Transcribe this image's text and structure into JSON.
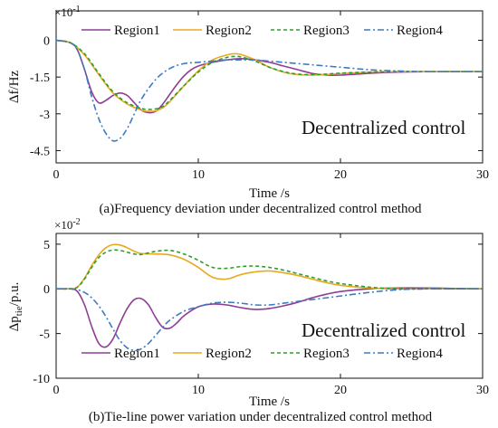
{
  "chart_data": [
    {
      "type": "line",
      "panel": "a",
      "caption": "(a)Frequency deviation under decentralized control method",
      "xlabel": "Time /s",
      "ylabel": "Δf/Hz",
      "y_multiplier": "×10",
      "y_multiplier_exp": "-1",
      "annotation": "Decentralized control",
      "xlim": [
        0,
        30
      ],
      "ylim": [
        -5,
        1.2
      ],
      "xticks": [
        "0",
        "10",
        "20",
        "30"
      ],
      "xtick_values": [
        0,
        10,
        20,
        30
      ],
      "yticks": [
        "0",
        "-1.5",
        "-3",
        "-4.5"
      ],
      "ytick_values": [
        0,
        -1.5,
        -3,
        -4.5
      ],
      "legend_position": "top",
      "series": [
        {
          "name": "Region1",
          "color": "#8e3d96",
          "dash": "solid",
          "x": [
            0,
            1,
            1.5,
            2,
            2.5,
            3,
            3.5,
            4,
            4.5,
            5,
            5.5,
            6,
            6.5,
            7,
            7.5,
            8,
            8.5,
            9,
            9.5,
            10,
            11,
            12,
            13,
            14,
            15,
            16,
            17,
            18,
            19,
            20,
            22,
            24,
            26,
            28,
            30
          ],
          "y": [
            0,
            -0.1,
            -0.4,
            -1.2,
            -2.1,
            -2.55,
            -2.45,
            -2.25,
            -2.15,
            -2.25,
            -2.55,
            -2.85,
            -2.95,
            -2.9,
            -2.6,
            -2.2,
            -1.8,
            -1.45,
            -1.2,
            -1.05,
            -0.9,
            -0.8,
            -0.75,
            -0.8,
            -0.9,
            -1.05,
            -1.2,
            -1.35,
            -1.42,
            -1.42,
            -1.35,
            -1.3,
            -1.28,
            -1.28,
            -1.28
          ]
        },
        {
          "name": "Region2",
          "color": "#e8a820",
          "dash": "solid",
          "x": [
            0,
            1,
            2,
            3,
            4,
            5,
            6,
            6.5,
            7,
            7.5,
            8,
            9,
            10,
            11,
            12,
            12.5,
            13,
            14,
            15,
            16,
            17,
            18,
            19,
            20,
            22,
            24,
            26,
            28,
            30
          ],
          "y": [
            0,
            -0.1,
            -0.6,
            -1.4,
            -2.15,
            -2.6,
            -2.85,
            -2.9,
            -2.88,
            -2.75,
            -2.5,
            -1.85,
            -1.25,
            -0.8,
            -0.6,
            -0.55,
            -0.58,
            -0.8,
            -1.1,
            -1.3,
            -1.4,
            -1.42,
            -1.4,
            -1.36,
            -1.3,
            -1.28,
            -1.28,
            -1.28,
            -1.28
          ]
        },
        {
          "name": "Region3",
          "color": "#2e9e2e",
          "dash": "4 3",
          "x": [
            0,
            1,
            2,
            3,
            4,
            5,
            6,
            6.5,
            7,
            7.5,
            8,
            9,
            10,
            11,
            12,
            12.5,
            13,
            14,
            15,
            16,
            17,
            18,
            19,
            20,
            22,
            24,
            26,
            28,
            30
          ],
          "y": [
            0,
            -0.1,
            -0.55,
            -1.35,
            -2.1,
            -2.55,
            -2.78,
            -2.82,
            -2.8,
            -2.7,
            -2.45,
            -1.85,
            -1.3,
            -0.9,
            -0.7,
            -0.66,
            -0.68,
            -0.85,
            -1.1,
            -1.28,
            -1.38,
            -1.4,
            -1.38,
            -1.34,
            -1.3,
            -1.28,
            -1.28,
            -1.28,
            -1.28
          ]
        },
        {
          "name": "Region4",
          "color": "#3b7bbf",
          "dash": "7 3 2 3",
          "x": [
            0,
            1,
            1.5,
            2,
            2.5,
            3,
            3.5,
            4,
            4.5,
            5,
            5.5,
            6,
            7,
            8,
            9,
            10,
            11,
            12,
            13,
            14,
            15,
            16,
            17,
            18,
            20,
            22,
            24,
            26,
            28,
            30
          ],
          "y": [
            0,
            -0.1,
            -0.4,
            -1.2,
            -2.3,
            -3.2,
            -3.8,
            -4.1,
            -4.0,
            -3.6,
            -3.0,
            -2.4,
            -1.6,
            -1.15,
            -0.95,
            -0.9,
            -0.85,
            -0.8,
            -0.8,
            -0.8,
            -0.85,
            -0.9,
            -0.95,
            -1.0,
            -1.1,
            -1.2,
            -1.25,
            -1.28,
            -1.28,
            -1.28
          ]
        }
      ]
    },
    {
      "type": "line",
      "panel": "b",
      "caption": "(b)Tie-line power variation under decentralized control method",
      "xlabel": "Time /s",
      "ylabel": "Δp",
      "ylabel_sub": "tie",
      "ylabel_suffix": "/p.u.",
      "y_multiplier": "×10",
      "y_multiplier_exp": "-2",
      "annotation": "Decentralized control",
      "xlim": [
        0,
        30
      ],
      "ylim": [
        -10,
        6.2
      ],
      "xticks": [
        "0",
        "10",
        "20",
        "30"
      ],
      "xtick_values": [
        0,
        10,
        20,
        30
      ],
      "yticks": [
        "5",
        "0",
        "-5",
        "-10"
      ],
      "ytick_values": [
        5,
        0,
        -5,
        -10
      ],
      "legend_position": "bottom",
      "series": [
        {
          "name": "Region1",
          "color": "#8e3d96",
          "dash": "solid",
          "x": [
            0,
            1,
            1.5,
            2,
            2.5,
            3,
            3.5,
            4,
            4.5,
            5,
            5.5,
            6,
            6.5,
            7,
            7.5,
            8,
            8.5,
            9,
            10,
            11,
            12,
            13,
            14,
            15,
            16,
            17,
            18,
            19,
            20,
            22,
            24,
            26,
            28,
            30
          ],
          "y": [
            0,
            0,
            -0.3,
            -1.8,
            -4.2,
            -6.1,
            -6.5,
            -5.6,
            -3.8,
            -2.2,
            -1.2,
            -1.1,
            -1.8,
            -3.2,
            -4.3,
            -4.4,
            -3.8,
            -3.0,
            -2.0,
            -1.7,
            -1.8,
            -2.1,
            -2.3,
            -2.2,
            -1.9,
            -1.5,
            -1.0,
            -0.6,
            -0.3,
            0,
            0.1,
            0.1,
            0.05,
            0
          ]
        },
        {
          "name": "Region2",
          "color": "#e8a820",
          "dash": "solid",
          "x": [
            0,
            1,
            1.5,
            2,
            2.5,
            3,
            3.5,
            4,
            4.5,
            5,
            5.5,
            6,
            7,
            8,
            9,
            10,
            11,
            12,
            13,
            14,
            15,
            16,
            17,
            18,
            19,
            20,
            22,
            24,
            26,
            28,
            30
          ],
          "y": [
            0,
            0,
            0.2,
            1.2,
            2.6,
            3.8,
            4.6,
            4.95,
            4.9,
            4.6,
            4.2,
            3.95,
            3.9,
            3.8,
            3.3,
            2.4,
            1.3,
            1.1,
            1.6,
            1.9,
            2.0,
            1.8,
            1.5,
            1.1,
            0.7,
            0.4,
            0.1,
            0,
            0,
            0,
            0
          ]
        },
        {
          "name": "Region3",
          "color": "#2e9e2e",
          "dash": "4 3",
          "x": [
            0,
            1,
            1.5,
            2,
            2.5,
            3,
            3.5,
            4,
            4.5,
            5,
            5.5,
            6,
            7,
            8,
            9,
            10,
            11,
            12,
            13,
            14,
            15,
            16,
            17,
            18,
            19,
            20,
            22,
            24,
            26,
            28,
            30
          ],
          "y": [
            0,
            0,
            0.2,
            1.1,
            2.4,
            3.5,
            4.1,
            4.35,
            4.3,
            4.1,
            3.9,
            3.85,
            4.2,
            4.3,
            3.9,
            3.2,
            2.4,
            2.3,
            2.5,
            2.55,
            2.4,
            2.1,
            1.7,
            1.3,
            0.9,
            0.6,
            0.2,
            0,
            0,
            0,
            0
          ]
        },
        {
          "name": "Region4",
          "color": "#3b7bbf",
          "dash": "7 3 2 3",
          "x": [
            0,
            1,
            1.5,
            2,
            2.5,
            3,
            3.5,
            4,
            4.5,
            5,
            5.5,
            6,
            6.5,
            7,
            7.5,
            8,
            9,
            10,
            11,
            12,
            13,
            14,
            15,
            16,
            17,
            18,
            19,
            20,
            22,
            24,
            26,
            28,
            30
          ],
          "y": [
            0,
            0,
            -0.1,
            -0.4,
            -1.0,
            -1.9,
            -3.1,
            -4.5,
            -5.8,
            -6.6,
            -6.9,
            -6.7,
            -6.1,
            -5.2,
            -4.3,
            -3.5,
            -2.5,
            -2.0,
            -1.6,
            -1.5,
            -1.6,
            -1.8,
            -1.8,
            -1.6,
            -1.4,
            -1.2,
            -1.0,
            -0.8,
            -0.4,
            -0.1,
            0,
            0,
            0
          ]
        }
      ]
    }
  ]
}
